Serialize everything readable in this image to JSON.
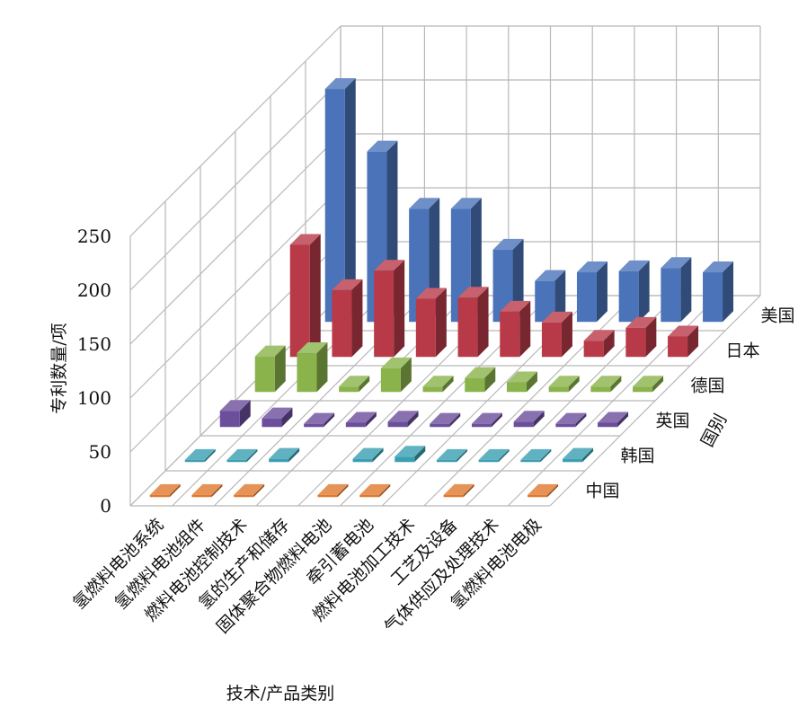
{
  "chart_data": {
    "type": "bar",
    "subtype": "3d-grouped",
    "title": "",
    "xlabel": "技术/产品类别",
    "ylabel": "专利数量/项",
    "zlabel": "国别",
    "ylim": [
      0,
      250
    ],
    "yticks": [
      0,
      50,
      100,
      150,
      200,
      250
    ],
    "grid": true,
    "categories": [
      "氢燃料电池系统",
      "氢燃料电池组件",
      "燃料电池控制技术",
      "氢的生产和储存",
      "固体聚合物燃料电池",
      "牵引蓄电池",
      "燃料电池加工技术",
      "工艺及设备",
      "气体供应及处理技术",
      "氢燃料电池电极"
    ],
    "series": [
      {
        "name": "中国",
        "color": "#e0782e",
        "values": [
          2,
          2,
          2,
          0,
          2,
          2,
          0,
          2,
          0,
          2
        ]
      },
      {
        "name": "韩国",
        "color": "#3a9fb2",
        "values": [
          2,
          2,
          3,
          0,
          3,
          5,
          2,
          2,
          2,
          3
        ]
      },
      {
        "name": "英国",
        "color": "#6b4e9c",
        "values": [
          15,
          8,
          3,
          4,
          5,
          3,
          3,
          5,
          3,
          4
        ]
      },
      {
        "name": "德国",
        "color": "#8ab34b",
        "values": [
          33,
          36,
          5,
          22,
          5,
          13,
          9,
          5,
          5,
          5
        ]
      },
      {
        "name": "日本",
        "color": "#b83a48",
        "values": [
          104,
          62,
          80,
          54,
          55,
          42,
          32,
          15,
          27,
          19
        ]
      },
      {
        "name": "美国",
        "color": "#4a73b9",
        "values": [
          216,
          158,
          105,
          105,
          67,
          38,
          46,
          47,
          50,
          46
        ]
      }
    ]
  }
}
